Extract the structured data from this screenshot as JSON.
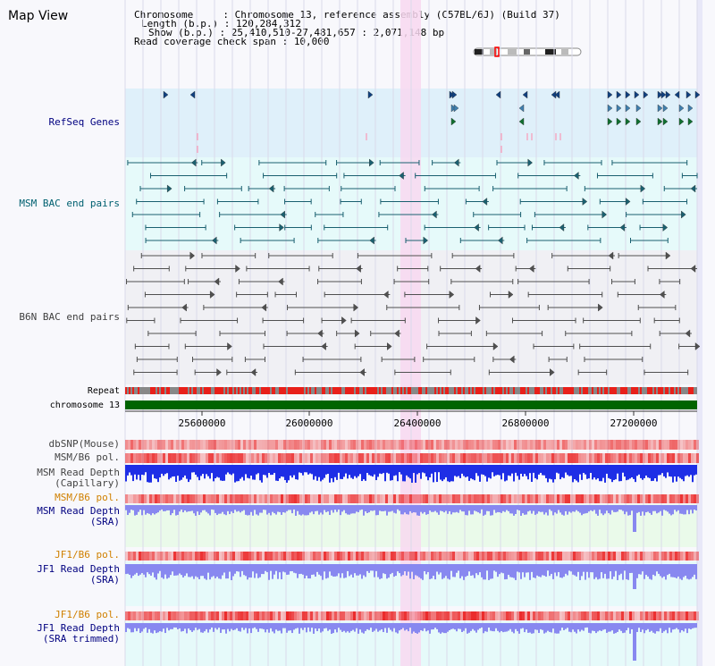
{
  "page": {
    "title": "Map View"
  },
  "info": {
    "chromosome_label": "Chromosome     : ",
    "chromosome_value": "Chromosome 13, reference assembly (C57BL/6J) (Build 37)",
    "length_label": "Length (b.p.) : ",
    "length_value": "120,284,312",
    "show_label": "Show (b.p.) : ",
    "show_value": "25,410,510-27,481,657 : 2,071,148 bp",
    "coverage_label": "Read coverage check span : ",
    "coverage_value": "10,000"
  },
  "tracks": {
    "refseq": {
      "label": "RefSeq Genes",
      "color": "#000080"
    },
    "msm_bac": {
      "label": "MSM BAC end pairs",
      "color": "#006070"
    },
    "b6n_bac": {
      "label": "B6N BAC end pairs",
      "color": "#404040"
    },
    "repeat": {
      "label": "Repeat"
    },
    "chromosome": {
      "label": "chromosome 13"
    },
    "dbsnp": {
      "label": "dbSNP(Mouse)"
    },
    "msm_b6_pol_1": {
      "label": "MSM/B6 pol."
    },
    "msm_read_depth_cap_1": {
      "label": "MSM Read Depth"
    },
    "msm_read_depth_cap_2": {
      "label": "(Capillary)"
    },
    "msm_b6_pol_2": {
      "label": "MSM/B6 pol.",
      "color": "#d08000"
    },
    "msm_read_depth_sra_1": {
      "label": "MSM Read Depth"
    },
    "msm_read_depth_sra_2": {
      "label": "(SRA)"
    },
    "jf1_b6_pol_1": {
      "label": "JF1/B6 pol.",
      "color": "#d08000"
    },
    "jf1_read_depth_1": {
      "label": "JF1 Read Depth"
    },
    "jf1_read_depth_2": {
      "label": "(SRA)"
    },
    "jf1_b6_pol_2": {
      "label": "JF1/B6 pol.",
      "color": "#d08000"
    },
    "jf1_read_depth_trim_1": {
      "label": "JF1 Read Depth"
    },
    "jf1_read_depth_trim_2": {
      "label": "(SRA trimmed)"
    }
  },
  "axis": {
    "ticks": [
      "25600000",
      "26000000",
      "26400000",
      "26800000",
      "27200000"
    ]
  },
  "colors": {
    "refseq_bg": "#dff0fa",
    "bac_bg": "#e6fafa",
    "highlight": "#f8d8f0",
    "chromosome_bar": "#006400",
    "repeat_red": "#e8201a",
    "repeat_grey": "#888888",
    "depth_blue": "#1e2ee6",
    "depth_light": "#8888f0"
  }
}
